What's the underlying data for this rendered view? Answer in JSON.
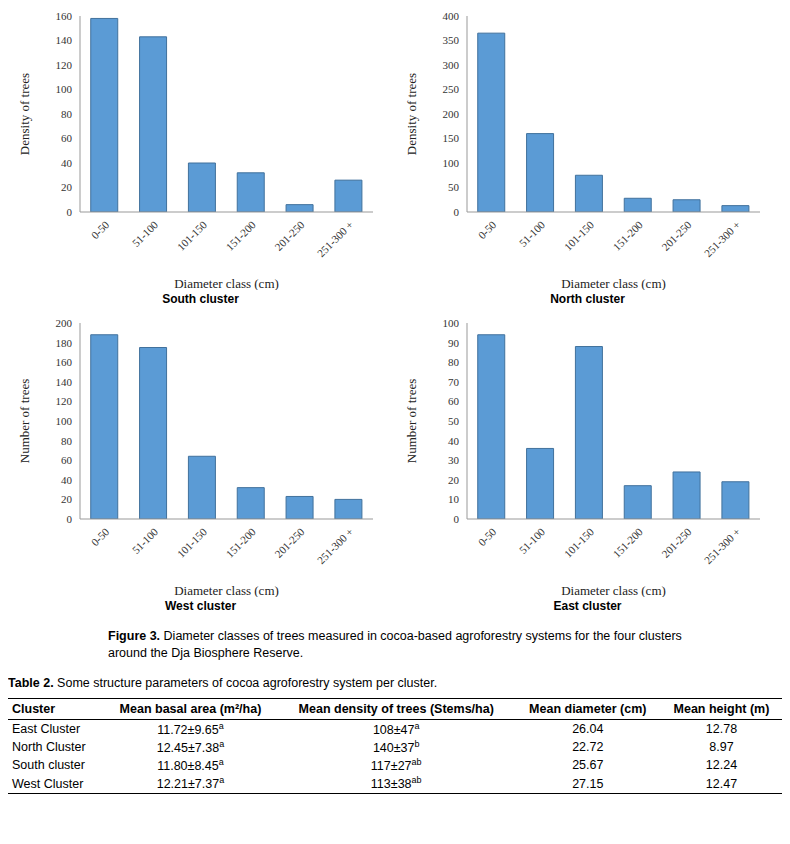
{
  "chart_data": [
    {
      "type": "bar",
      "title": "South cluster",
      "x_label": "Diameter class (cm)",
      "y_label": "Density of trees",
      "categories": [
        "0-50",
        "51-100",
        "101-150",
        "151-200",
        "201-250",
        "251-300 +"
      ],
      "values": [
        158,
        143,
        40,
        32,
        6,
        26
      ],
      "color": "#5b9bd5",
      "ylim": [
        0,
        160
      ],
      "yticks": [
        0,
        20,
        40,
        60,
        80,
        100,
        120,
        140,
        160
      ],
      "grid": false
    },
    {
      "type": "bar",
      "title": "North cluster",
      "x_label": "Diameter class (cm)",
      "y_label": "Density of trees",
      "categories": [
        "0-50",
        "51-100",
        "101-150",
        "151-200",
        "201-250",
        "251-300 +"
      ],
      "values": [
        365,
        160,
        75,
        28,
        25,
        13
      ],
      "color": "#5b9bd5",
      "ylim": [
        0,
        400
      ],
      "yticks": [
        0,
        50,
        100,
        150,
        200,
        250,
        300,
        350,
        400
      ],
      "grid": false
    },
    {
      "type": "bar",
      "title": "West cluster",
      "x_label": "Diameter class (cm)",
      "y_label": "Number of trees",
      "categories": [
        "0-50",
        "51-100",
        "101-150",
        "151-200",
        "201-250",
        "251-300 +"
      ],
      "values": [
        188,
        175,
        64,
        32,
        23,
        20
      ],
      "color": "#5b9bd5",
      "ylim": [
        0,
        200
      ],
      "yticks": [
        0,
        20,
        40,
        60,
        80,
        100,
        120,
        140,
        160,
        180,
        200
      ],
      "grid": false
    },
    {
      "type": "bar",
      "title": "East cluster",
      "x_label": "Diameter class (cm)",
      "y_label": "Number of trees",
      "categories": [
        "0-50",
        "51-100",
        "101-150",
        "151-200",
        "201-250",
        "251-300 +"
      ],
      "values": [
        94,
        36,
        88,
        17,
        24,
        19
      ],
      "color": "#5b9bd5",
      "ylim": [
        0,
        100
      ],
      "yticks": [
        0,
        10,
        20,
        30,
        40,
        50,
        60,
        70,
        80,
        90,
        100
      ],
      "grid": false
    }
  ],
  "figure_caption": {
    "label": "Figure 3.",
    "text": "Diameter classes of trees measured in cocoa-based agroforestry systems for the four clusters around the Dja Biosphere Reserve."
  },
  "table": {
    "caption": {
      "label": "Table 2.",
      "text": "Some structure parameters of cocoa agroforestry system per cluster."
    },
    "header": [
      "Cluster",
      "Mean basal area (m²/ha)",
      "Mean density of trees (Stems/ha)",
      "Mean diameter (cm)",
      "Mean height (m)"
    ],
    "rows": [
      [
        "East Cluster",
        {
          "text": "11.72±9.65",
          "sup": "a"
        },
        {
          "text": "108±47",
          "sup": "a"
        },
        "26.04",
        "12.78"
      ],
      [
        "North Cluster",
        {
          "text": "12.45±7.38",
          "sup": "a"
        },
        {
          "text": "140±37",
          "sup": "b"
        },
        "22.72",
        "8.97"
      ],
      [
        "South cluster",
        {
          "text": "11.80±8.45",
          "sup": "a"
        },
        {
          "text": "117±27",
          "sup": "ab"
        },
        "25.67",
        "12.24"
      ],
      [
        "West Cluster",
        {
          "text": "12.21±7.37",
          "sup": "a"
        },
        {
          "text": "113±38",
          "sup": "ab"
        },
        "27.15",
        "12.47"
      ]
    ]
  }
}
